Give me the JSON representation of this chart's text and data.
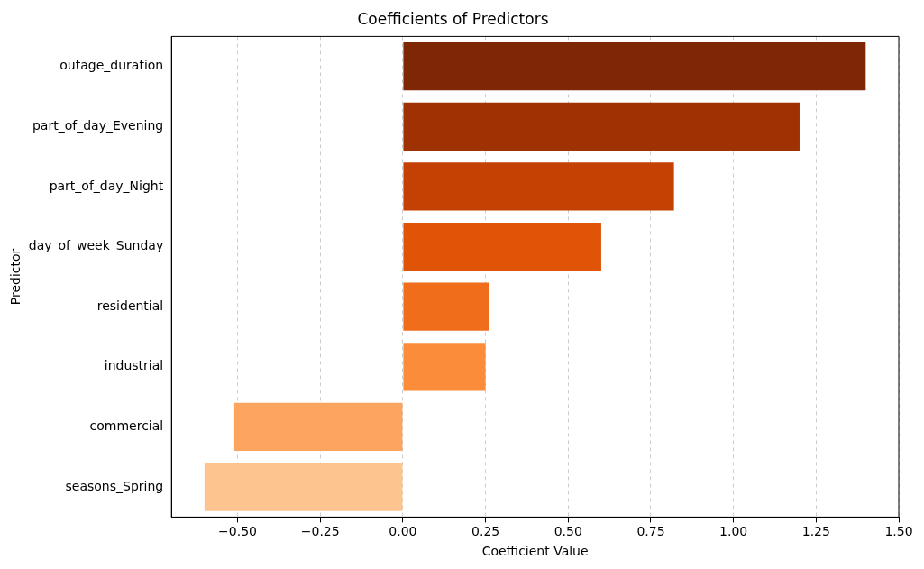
{
  "chart_data": {
    "type": "bar",
    "orientation": "horizontal",
    "title": "Coefficients of Predictors",
    "xlabel": "Coefficient Value",
    "ylabel": "Predictor",
    "categories": [
      "outage_duration",
      "part_of_day_Evening",
      "part_of_day_Night",
      "day_of_week_Sunday",
      "residential",
      "industrial",
      "commercial",
      "seasons_Spring"
    ],
    "values": [
      1.4,
      1.2,
      0.82,
      0.6,
      0.26,
      0.25,
      -0.51,
      -0.6
    ],
    "colors": [
      "#7f2704",
      "#9f3203",
      "#c44103",
      "#e05408",
      "#f06d1b",
      "#fb8c3a",
      "#fda55e",
      "#fdc48f"
    ],
    "xlim": [
      -0.7,
      1.5
    ],
    "xticks": [
      {
        "value": -0.5,
        "label": "−0.50"
      },
      {
        "value": -0.25,
        "label": "−0.25"
      },
      {
        "value": 0,
        "label": "0.00"
      },
      {
        "value": 0.25,
        "label": "0.25"
      },
      {
        "value": 0.5,
        "label": "0.50"
      },
      {
        "value": 0.75,
        "label": "0.75"
      },
      {
        "value": 1,
        "label": "1.00"
      },
      {
        "value": 1.25,
        "label": "1.25"
      },
      {
        "value": 1.5,
        "label": "1.50"
      }
    ],
    "grid": "x"
  }
}
